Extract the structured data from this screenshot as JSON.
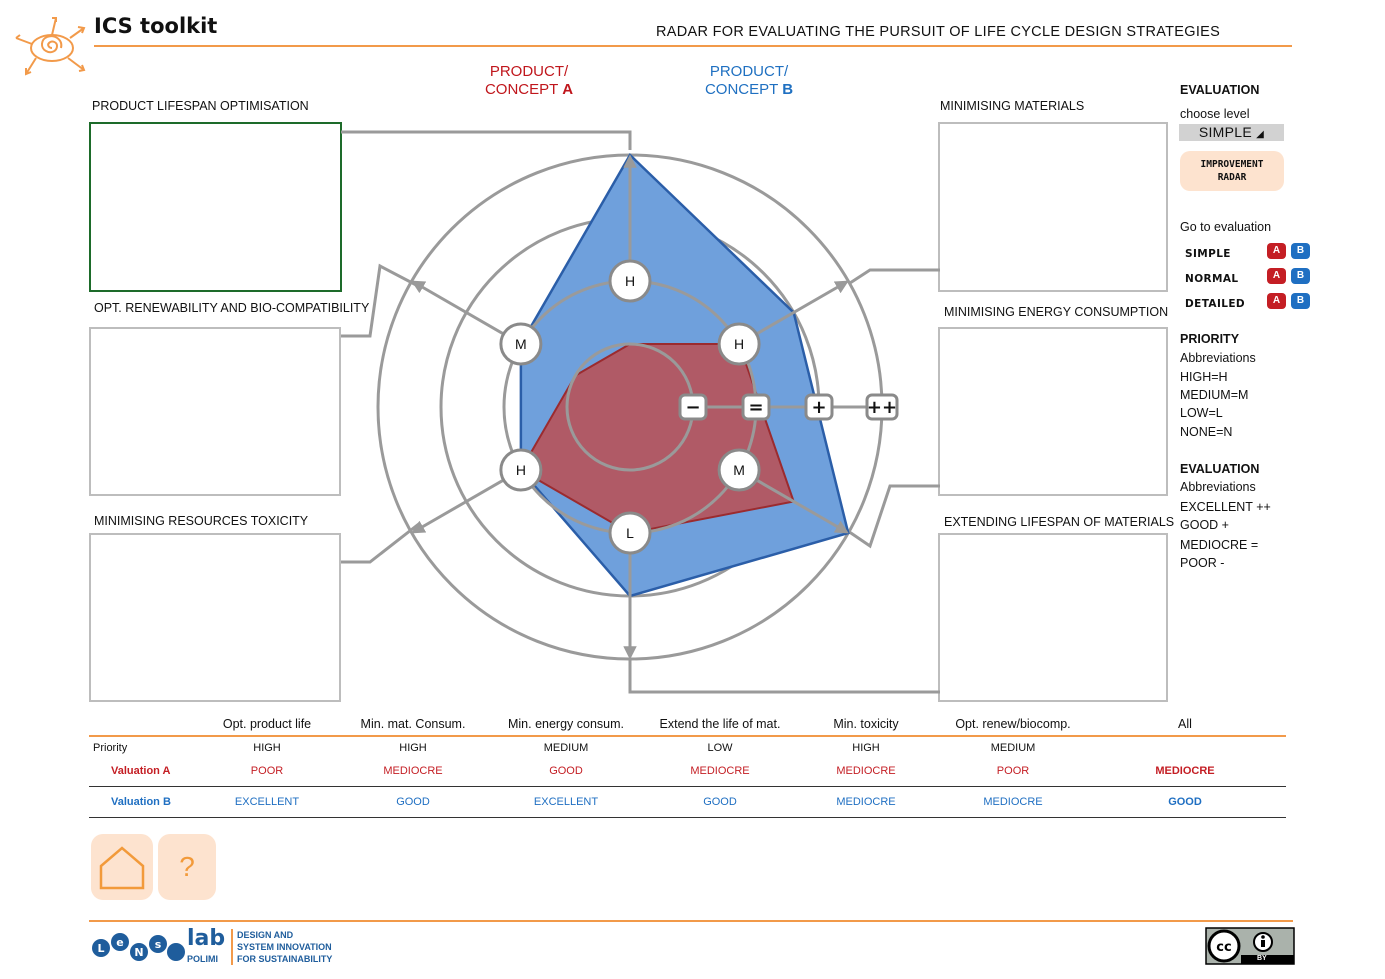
{
  "header": {
    "app_title": "ICS toolkit",
    "radar_title": "RADAR FOR EVALUATING THE PURSUIT OF LIFE CYCLE DESIGN STRATEGIES"
  },
  "products": {
    "a_line1": "PRODUCT/",
    "a_line2": "CONCEPT ",
    "a_letter": "A",
    "b_line1": "PRODUCT/",
    "b_line2": "CONCEPT ",
    "b_letter": "B",
    "a_color": "#c41e24",
    "b_color": "#1f6fc2"
  },
  "strategies": {
    "lifespan": "PRODUCT LIFESPAN OPTIMISATION",
    "renewability": "OPT. RENEWABILITY AND BIO-COMPATIBILITY",
    "toxicity": "MINIMISING RESOURCES TOXICITY",
    "materials": "MINIMISING MATERIALS",
    "energy": "MINIMISING ENERGY CONSUMPTION",
    "extending": "EXTENDING LIFESPAN OF MATERIALS"
  },
  "radar": {
    "priority_badges": [
      "H",
      "H",
      "M",
      "L",
      "H",
      "M"
    ],
    "scale_labels": [
      "−",
      "=",
      "+",
      "++"
    ],
    "fill_a": "#b05a66",
    "fill_b": "#6fa0dc",
    "evaluation_levels": [
      "POOR",
      "MEDIOCRE",
      "GOOD",
      "EXCELLENT"
    ],
    "axis_order": [
      "Opt. product life",
      "Min. mat. Consum.",
      "Min. energy consum.",
      "Extend the life of mat.",
      "Min. toxicity",
      "Opt. renew/biocomp."
    ]
  },
  "sidebar": {
    "evaluation_heading": "EVALUATION",
    "choose_level": "choose level",
    "level_value": "SIMPLE",
    "level_arrow": "◢",
    "improvement_line1": "IMPROVEMENT",
    "improvement_line2": "RADAR",
    "go_to_evaluation": "Go to evaluation",
    "evaluations": [
      {
        "name": "SIMPLE",
        "a": "A",
        "b": "B"
      },
      {
        "name": "NORMAL",
        "a": "A",
        "b": "B"
      },
      {
        "name": "DETAILED",
        "a": "A",
        "b": "B"
      }
    ],
    "priority_heading": "PRIORITY",
    "priority_abbr_title": "Abbreviations",
    "priority_abbr": [
      "HIGH=H",
      "MEDIUM=M",
      "LOW=L",
      "NONE=N"
    ],
    "evaluation_heading2": "EVALUATION",
    "evaluation_abbr_title": "Abbreviations",
    "evaluation_abbr": [
      "EXCELLENT ++",
      "GOOD +",
      "MEDIOCRE =",
      "POOR -"
    ]
  },
  "table": {
    "columns": [
      "Opt. product life",
      "Min. mat. Consum.",
      "Min. energy consum.",
      "Extend the life of mat.",
      "Min. toxicity",
      "Opt. renew/biocomp.",
      "All"
    ],
    "priority_label": "Priority",
    "priority": [
      "HIGH",
      "HIGH",
      "MEDIUM",
      "LOW",
      "HIGH",
      "MEDIUM",
      ""
    ],
    "valuation_a_label": "Valuation A",
    "valuation_a": [
      "POOR",
      "MEDIOCRE",
      "GOOD",
      "MEDIOCRE",
      "MEDIOCRE",
      "POOR",
      "MEDIOCRE"
    ],
    "valuation_b_label": "Valuation B",
    "valuation_b": [
      "EXCELLENT",
      "GOOD",
      "EXCELLENT",
      "GOOD",
      "MEDIOCRE",
      "MEDIOCRE",
      "GOOD"
    ]
  },
  "nav": {
    "help_symbol": "?"
  },
  "footer": {
    "lens_word": "lab",
    "polimi": "POLIMI",
    "tagline": [
      "DESIGN AND",
      "SYSTEM INNOVATION",
      "FOR SUSTAINABILITY"
    ],
    "license_by": "BY"
  }
}
